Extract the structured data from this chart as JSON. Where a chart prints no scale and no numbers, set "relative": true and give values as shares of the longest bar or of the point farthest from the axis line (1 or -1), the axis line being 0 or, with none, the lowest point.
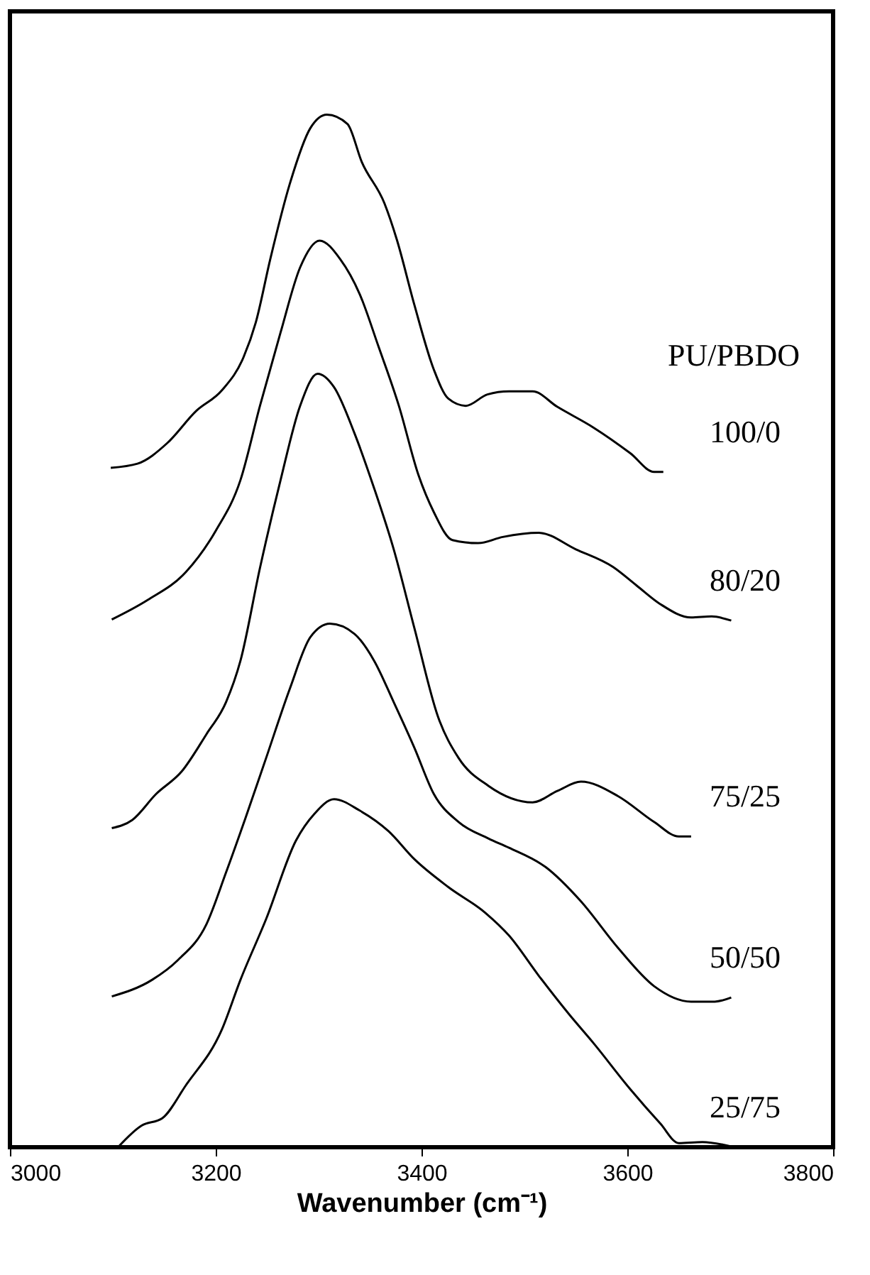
{
  "chart_data": {
    "type": "line",
    "relative": true,
    "xlabel": "Wavenumber (cm⁻¹)",
    "legend_title": "PU/PBDO",
    "xlim": [
      3000,
      3800
    ],
    "xticks": [
      3000,
      3200,
      3400,
      3600,
      3800
    ],
    "grid": false,
    "legend": false,
    "marker": "none",
    "line_style": "solid",
    "series": [
      {
        "name": "100/0",
        "color": "#000000",
        "x": [
          3098,
          3124,
          3153,
          3181,
          3206,
          3227,
          3239,
          3253,
          3272,
          3292,
          3308,
          3328,
          3342,
          3364,
          3376,
          3393,
          3412,
          3426,
          3443,
          3464,
          3485,
          3508,
          3532,
          3567,
          3603,
          3626,
          3635
        ],
        "values": [
          0.658,
          0.662,
          0.682,
          0.713,
          0.733,
          0.765,
          0.799,
          0.86,
          0.933,
          0.987,
          1,
          0.991,
          0.954,
          0.914,
          0.879,
          0.816,
          0.753,
          0.725,
          0.718,
          0.729,
          0.732,
          0.732,
          0.717,
          0.697,
          0.672,
          0.654,
          0.654
        ]
      },
      {
        "name": "80/20",
        "color": "#000000",
        "x": [
          3099,
          3134,
          3171,
          3200,
          3224,
          3243,
          3263,
          3282,
          3301,
          3321,
          3340,
          3358,
          3378,
          3397,
          3412,
          3430,
          3455,
          3479,
          3514,
          3550,
          3586,
          3609,
          3632,
          3662,
          3682,
          3701
        ],
        "values": [
          0.511,
          0.53,
          0.557,
          0.597,
          0.646,
          0.718,
          0.789,
          0.852,
          0.878,
          0.86,
          0.826,
          0.776,
          0.718,
          0.651,
          0.615,
          0.588,
          0.585,
          0.591,
          0.595,
          0.579,
          0.562,
          0.544,
          0.526,
          0.513,
          0.514,
          0.51
        ]
      },
      {
        "name": "75/25",
        "color": "#000000",
        "x": [
          3099,
          3119,
          3142,
          3167,
          3191,
          3210,
          3224,
          3243,
          3263,
          3282,
          3299,
          3315,
          3335,
          3354,
          3373,
          3393,
          3416,
          3436,
          3465,
          3508,
          3532,
          3555,
          3591,
          3626,
          3650,
          3662
        ],
        "values": [
          0.309,
          0.317,
          0.342,
          0.364,
          0.4,
          0.431,
          0.471,
          0.561,
          0.646,
          0.718,
          0.749,
          0.736,
          0.691,
          0.638,
          0.579,
          0.503,
          0.417,
          0.377,
          0.35,
          0.334,
          0.345,
          0.354,
          0.34,
          0.315,
          0.301,
          0.301
        ]
      },
      {
        "name": "50/50",
        "color": "#000000",
        "x": [
          3099,
          3138,
          3163,
          3191,
          3210,
          3229,
          3249,
          3272,
          3292,
          3311,
          3335,
          3354,
          3373,
          3393,
          3412,
          3436,
          3465,
          3485,
          3521,
          3555,
          3591,
          3626,
          3662,
          3685,
          3701
        ],
        "values": [
          0.146,
          0.162,
          0.181,
          0.216,
          0.266,
          0.319,
          0.377,
          0.444,
          0.494,
          0.507,
          0.497,
          0.471,
          0.431,
          0.387,
          0.342,
          0.315,
          0.299,
          0.29,
          0.271,
          0.238,
          0.193,
          0.156,
          0.141,
          0.141,
          0.145
        ]
      },
      {
        "name": "25/75",
        "color": "#000000",
        "x": [
          3105,
          3128,
          3148,
          3171,
          3206,
          3224,
          3249,
          3278,
          3296,
          3315,
          3340,
          3368,
          3393,
          3426,
          3462,
          3485,
          3514,
          3544,
          3567,
          3603,
          3632,
          3650,
          3673,
          3704
        ],
        "values": [
          0,
          0.021,
          0.028,
          0.06,
          0.114,
          0.162,
          0.221,
          0.297,
          0.323,
          0.337,
          0.326,
          0.306,
          0.279,
          0.252,
          0.227,
          0.205,
          0.166,
          0.128,
          0.101,
          0.056,
          0.023,
          0.004,
          0.005,
          0
        ]
      }
    ]
  }
}
